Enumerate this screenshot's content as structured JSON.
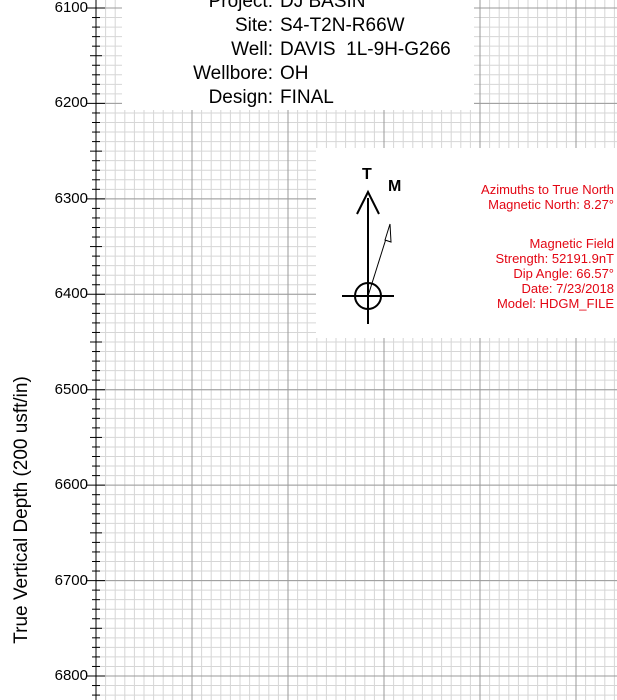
{
  "header": {
    "rows": [
      {
        "label": "Project:",
        "value": "DJ BASIN"
      },
      {
        "label": "Site:",
        "value": "S4-T2N-R66W"
      },
      {
        "label": "Well:",
        "value": "DAVIS  1L-9H-G266"
      },
      {
        "label": "Wellbore:",
        "value": "OH"
      },
      {
        "label": "Design:",
        "value": "FINAL"
      }
    ]
  },
  "north_arrow": {
    "true_label": "T",
    "magnetic_label": "M",
    "azimuth_text": "Azimuths to True North",
    "magnetic_north": "Magnetic North: 8.27°",
    "field_title": "Magnetic Field",
    "strength": "Strength: 52191.9nT",
    "dip": "Dip Angle: 66.57°",
    "date": "Date: 7/23/2018",
    "model": "Model: HDGM_FILE"
  },
  "colors": {
    "annotation": "#e30613",
    "grid_major": "#9a9a9a",
    "grid_minor": "#d6d6d6"
  },
  "chart_data": {
    "type": "line",
    "ylabel": "True Vertical Depth (200 usft/in)",
    "ylim": [
      6800,
      6100
    ],
    "y_ticks": [
      6100,
      6200,
      6300,
      6400,
      6500,
      6600,
      6700,
      6800
    ],
    "y_reversed": true,
    "grid": true,
    "series": []
  }
}
